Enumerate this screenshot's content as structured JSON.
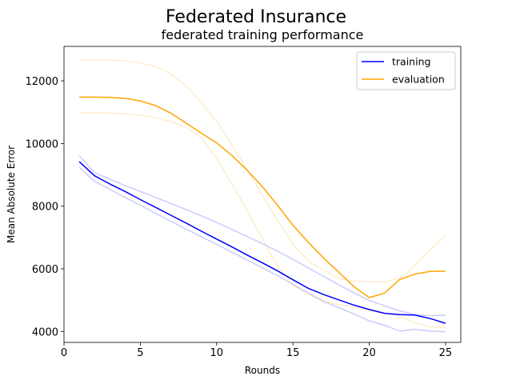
{
  "chart_data": {
    "type": "line",
    "suptitle": "Federated Insurance",
    "title": "federated training performance",
    "xlabel": "Rounds",
    "ylabel": "Mean Absolute Error",
    "xlim": [
      0,
      26
    ],
    "ylim": [
      3650,
      13100
    ],
    "xticks": [
      0,
      5,
      10,
      15,
      20,
      25
    ],
    "yticks": [
      4000,
      6000,
      8000,
      10000,
      12000
    ],
    "legend_position": "top-right",
    "x": [
      1,
      2,
      3,
      4,
      5,
      6,
      7,
      8,
      9,
      10,
      11,
      12,
      13,
      14,
      15,
      16,
      17,
      18,
      19,
      20,
      21,
      22,
      23,
      24,
      25
    ],
    "series": [
      {
        "name": "training",
        "color": "#0000ff",
        "values": [
          9420,
          8970,
          8710,
          8470,
          8210,
          7960,
          7710,
          7460,
          7200,
          6950,
          6700,
          6440,
          6190,
          5930,
          5650,
          5380,
          5180,
          5010,
          4840,
          4700,
          4580,
          4540,
          4520,
          4410,
          4260
        ]
      },
      {
        "name": "evaluation",
        "color": "#ffa500",
        "values": [
          11480,
          11480,
          11470,
          11440,
          11360,
          11210,
          10970,
          10650,
          10330,
          10020,
          9620,
          9150,
          8620,
          8020,
          7390,
          6850,
          6350,
          5890,
          5430,
          5080,
          5220,
          5660,
          5830,
          5920,
          5920
        ]
      }
    ],
    "bands": [
      {
        "color": "#0000ff",
        "upper": [
          9600,
          9070,
          8860,
          8660,
          8470,
          8280,
          8090,
          7890,
          7690,
          7480,
          7260,
          7030,
          6800,
          6560,
          6300,
          6030,
          5760,
          5490,
          5230,
          4990,
          4820,
          4660,
          4540,
          4500,
          4520
        ],
        "lower": [
          9240,
          8790,
          8540,
          8280,
          8030,
          7770,
          7520,
          7270,
          7020,
          6780,
          6530,
          6280,
          6030,
          5780,
          5500,
          5230,
          4960,
          4760,
          4560,
          4340,
          4200,
          4010,
          4070,
          4010,
          3990
        ]
      },
      {
        "color": "#ffa500",
        "upper": [
          12670,
          12670,
          12660,
          12640,
          12580,
          12450,
          12220,
          11840,
          11320,
          10700,
          9960,
          9160,
          8340,
          7540,
          6790,
          6250,
          5960,
          5700,
          5610,
          5590,
          5580,
          5700,
          6100,
          6600,
          7060
        ],
        "lower": [
          10980,
          10980,
          10970,
          10950,
          10900,
          10820,
          10700,
          10520,
          10180,
          9540,
          8700,
          7870,
          6960,
          6080,
          5490,
          5170,
          4960,
          4850,
          4780,
          4660,
          4580,
          4480,
          4270,
          4140,
          4130
        ]
      }
    ]
  }
}
